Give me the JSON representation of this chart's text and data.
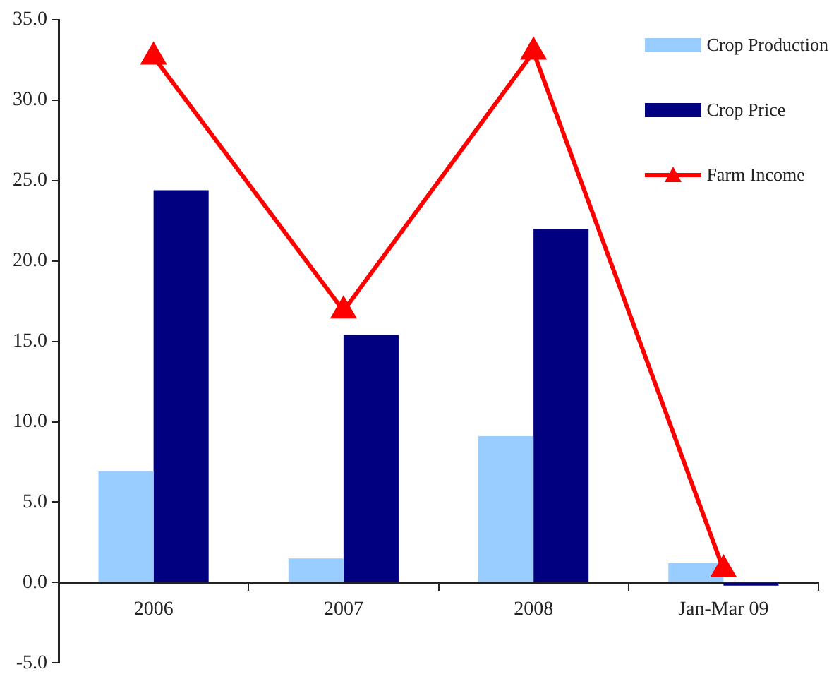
{
  "chart_data": {
    "type": "bar",
    "categories": [
      "2006",
      "2007",
      "2008",
      "Jan-Mar 09"
    ],
    "series": [
      {
        "name": "Crop Production",
        "color": "#99ccff",
        "values": [
          6.9,
          1.5,
          9.1,
          1.2
        ]
      },
      {
        "name": "Crop Price",
        "color": "#000080",
        "values": [
          24.4,
          15.4,
          22.0,
          -0.2
        ]
      },
      {
        "name": "Farm Income",
        "type": "line",
        "color": "#ff0000",
        "values": [
          32.7,
          16.9,
          33.0,
          0.8
        ]
      }
    ],
    "ylim": [
      -5,
      35
    ],
    "yticks": [
      {
        "value": -5,
        "label": "-5.0"
      },
      {
        "value": 0,
        "label": "0.0"
      },
      {
        "value": 5,
        "label": "5.0"
      },
      {
        "value": 10,
        "label": "10.0"
      },
      {
        "value": 15,
        "label": "15.0"
      },
      {
        "value": 20,
        "label": "20.0"
      },
      {
        "value": 25,
        "label": "25.0"
      },
      {
        "value": 30,
        "label": "30.0"
      },
      {
        "value": 35,
        "label": "35.0"
      }
    ],
    "grid": false,
    "legend": "top right",
    "marker": "triangle",
    "line_style": "solid"
  }
}
